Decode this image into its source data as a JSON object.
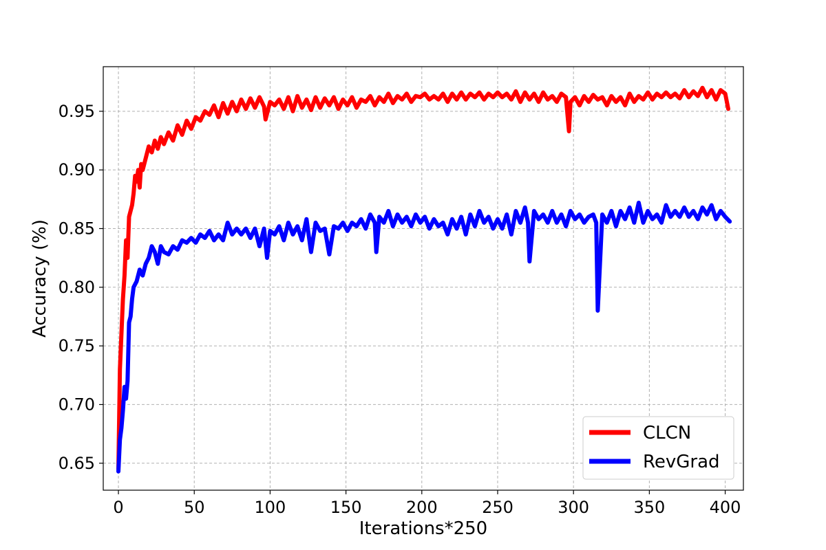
{
  "chart_data": {
    "type": "line",
    "title": "",
    "xlabel": "Iterations*250",
    "ylabel": "Accuracy (%)",
    "xlim": [
      -10,
      412
    ],
    "ylim": [
      0.627,
      0.988
    ],
    "xticks": [
      0,
      50,
      100,
      150,
      200,
      250,
      300,
      350,
      400
    ],
    "yticks": [
      0.65,
      0.7,
      0.75,
      0.8,
      0.85,
      0.9,
      0.95
    ],
    "ytick_labels": [
      "0.65",
      "0.70",
      "0.75",
      "0.80",
      "0.85",
      "0.90",
      "0.95"
    ],
    "grid": true,
    "legend_position": "bottom-right",
    "series": [
      {
        "name": "CLCN",
        "color": "#ff0000",
        "x": [
          0,
          1,
          2,
          3,
          4,
          5,
          6,
          7,
          8,
          9,
          10,
          11,
          12,
          13,
          14,
          15,
          16,
          18,
          20,
          22,
          24,
          26,
          28,
          30,
          33,
          36,
          39,
          42,
          45,
          48,
          51,
          54,
          57,
          60,
          63,
          66,
          69,
          72,
          75,
          78,
          81,
          84,
          87,
          90,
          93,
          96,
          97,
          100,
          103,
          106,
          109,
          112,
          115,
          118,
          121,
          124,
          127,
          130,
          133,
          136,
          139,
          142,
          145,
          148,
          151,
          154,
          157,
          160,
          163,
          166,
          169,
          172,
          175,
          178,
          181,
          184,
          187,
          190,
          193,
          196,
          199,
          202,
          205,
          208,
          211,
          214,
          217,
          220,
          223,
          226,
          229,
          232,
          235,
          238,
          241,
          244,
          247,
          250,
          253,
          256,
          259,
          262,
          265,
          268,
          271,
          274,
          277,
          280,
          283,
          286,
          289,
          292,
          295,
          297,
          298,
          301,
          304,
          307,
          310,
          313,
          316,
          319,
          322,
          325,
          328,
          331,
          334,
          337,
          340,
          343,
          346,
          349,
          352,
          355,
          358,
          361,
          364,
          367,
          370,
          373,
          376,
          379,
          382,
          385,
          388,
          391,
          394,
          397,
          400,
          402
        ],
        "y": [
          0.645,
          0.73,
          0.76,
          0.79,
          0.81,
          0.84,
          0.825,
          0.86,
          0.865,
          0.87,
          0.88,
          0.895,
          0.89,
          0.9,
          0.885,
          0.905,
          0.9,
          0.91,
          0.92,
          0.915,
          0.925,
          0.918,
          0.928,
          0.922,
          0.932,
          0.925,
          0.938,
          0.93,
          0.942,
          0.935,
          0.945,
          0.942,
          0.95,
          0.947,
          0.955,
          0.945,
          0.957,
          0.948,
          0.958,
          0.95,
          0.96,
          0.952,
          0.961,
          0.953,
          0.962,
          0.954,
          0.943,
          0.958,
          0.955,
          0.96,
          0.952,
          0.962,
          0.95,
          0.963,
          0.953,
          0.96,
          0.951,
          0.962,
          0.953,
          0.961,
          0.955,
          0.962,
          0.952,
          0.96,
          0.955,
          0.962,
          0.953,
          0.96,
          0.958,
          0.963,
          0.955,
          0.962,
          0.958,
          0.965,
          0.957,
          0.963,
          0.96,
          0.965,
          0.958,
          0.963,
          0.962,
          0.965,
          0.96,
          0.963,
          0.96,
          0.965,
          0.958,
          0.965,
          0.96,
          0.966,
          0.96,
          0.965,
          0.962,
          0.966,
          0.96,
          0.965,
          0.962,
          0.966,
          0.962,
          0.965,
          0.96,
          0.967,
          0.958,
          0.966,
          0.96,
          0.965,
          0.958,
          0.966,
          0.96,
          0.963,
          0.958,
          0.965,
          0.962,
          0.933,
          0.958,
          0.962,
          0.955,
          0.963,
          0.958,
          0.964,
          0.96,
          0.962,
          0.955,
          0.963,
          0.958,
          0.962,
          0.955,
          0.965,
          0.958,
          0.963,
          0.96,
          0.966,
          0.96,
          0.965,
          0.962,
          0.966,
          0.962,
          0.965,
          0.961,
          0.968,
          0.962,
          0.967,
          0.963,
          0.97,
          0.962,
          0.968,
          0.96,
          0.968,
          0.965,
          0.952
        ]
      },
      {
        "name": "RevGrad",
        "color": "#0000ff",
        "x": [
          0,
          1,
          2,
          3,
          4,
          5,
          6,
          7,
          8,
          9,
          10,
          12,
          14,
          16,
          18,
          20,
          22,
          24,
          26,
          28,
          30,
          33,
          36,
          39,
          42,
          45,
          48,
          51,
          54,
          57,
          60,
          63,
          66,
          69,
          72,
          75,
          78,
          81,
          84,
          87,
          90,
          93,
          96,
          98,
          100,
          103,
          106,
          109,
          112,
          115,
          118,
          121,
          124,
          127,
          130,
          133,
          136,
          139,
          142,
          145,
          148,
          151,
          154,
          157,
          160,
          163,
          166,
          169,
          170,
          172,
          175,
          178,
          181,
          184,
          187,
          190,
          193,
          196,
          199,
          202,
          205,
          208,
          211,
          214,
          217,
          220,
          223,
          226,
          229,
          232,
          235,
          238,
          241,
          244,
          247,
          250,
          253,
          256,
          259,
          262,
          265,
          268,
          270,
          271,
          274,
          277,
          280,
          283,
          286,
          289,
          292,
          295,
          298,
          301,
          304,
          307,
          310,
          313,
          315,
          316,
          319,
          322,
          325,
          328,
          331,
          334,
          337,
          340,
          343,
          346,
          349,
          352,
          355,
          358,
          361,
          364,
          367,
          370,
          373,
          376,
          379,
          382,
          385,
          388,
          391,
          394,
          397,
          400,
          403
        ],
        "y": [
          0.643,
          0.67,
          0.68,
          0.695,
          0.715,
          0.705,
          0.72,
          0.77,
          0.775,
          0.79,
          0.8,
          0.805,
          0.815,
          0.81,
          0.82,
          0.825,
          0.835,
          0.83,
          0.82,
          0.835,
          0.83,
          0.828,
          0.835,
          0.832,
          0.84,
          0.838,
          0.842,
          0.838,
          0.845,
          0.842,
          0.848,
          0.84,
          0.845,
          0.84,
          0.855,
          0.845,
          0.85,
          0.845,
          0.85,
          0.842,
          0.85,
          0.835,
          0.85,
          0.825,
          0.848,
          0.845,
          0.852,
          0.84,
          0.855,
          0.845,
          0.852,
          0.84,
          0.858,
          0.83,
          0.855,
          0.848,
          0.85,
          0.828,
          0.852,
          0.85,
          0.855,
          0.848,
          0.855,
          0.852,
          0.858,
          0.85,
          0.862,
          0.855,
          0.83,
          0.86,
          0.855,
          0.865,
          0.852,
          0.862,
          0.855,
          0.86,
          0.852,
          0.862,
          0.855,
          0.86,
          0.85,
          0.858,
          0.852,
          0.855,
          0.845,
          0.858,
          0.85,
          0.86,
          0.845,
          0.862,
          0.852,
          0.865,
          0.855,
          0.86,
          0.85,
          0.858,
          0.85,
          0.862,
          0.845,
          0.865,
          0.855,
          0.868,
          0.855,
          0.822,
          0.865,
          0.858,
          0.862,
          0.855,
          0.865,
          0.855,
          0.862,
          0.852,
          0.865,
          0.858,
          0.862,
          0.855,
          0.86,
          0.862,
          0.855,
          0.78,
          0.862,
          0.855,
          0.865,
          0.852,
          0.865,
          0.858,
          0.868,
          0.855,
          0.872,
          0.855,
          0.865,
          0.858,
          0.862,
          0.855,
          0.87,
          0.86,
          0.865,
          0.86,
          0.868,
          0.86,
          0.865,
          0.858,
          0.868,
          0.862,
          0.87,
          0.858,
          0.865,
          0.86,
          0.856
        ]
      }
    ]
  }
}
